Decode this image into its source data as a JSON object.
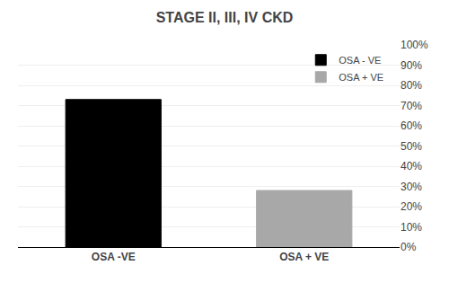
{
  "chart_data": {
    "type": "bar",
    "title": "STAGE II, III, IV CKD",
    "categories": [
      "OSA -VE",
      "OSA + VE"
    ],
    "series": [
      {
        "name": "OSA - VE",
        "color": "#000000",
        "values": [
          0.73,
          null
        ]
      },
      {
        "name": "OSA + VE",
        "color": "#a8a8a8",
        "values": [
          null,
          0.28
        ]
      }
    ],
    "ylim": [
      0,
      1.0
    ],
    "yticks": [
      {
        "value": 0.0,
        "label": "0%"
      },
      {
        "value": 0.1,
        "label": "10%"
      },
      {
        "value": 0.2,
        "label": "20%"
      },
      {
        "value": 0.3,
        "label": "30%"
      },
      {
        "value": 0.4,
        "label": "40%"
      },
      {
        "value": 0.5,
        "label": "50%"
      },
      {
        "value": 0.6,
        "label": "60%"
      },
      {
        "value": 0.7,
        "label": "70%"
      },
      {
        "value": 0.8,
        "label": "80%"
      },
      {
        "value": 0.9,
        "label": "90%"
      },
      {
        "value": 1.0,
        "label": "100%"
      }
    ],
    "grid": true,
    "legend": "upper right"
  }
}
